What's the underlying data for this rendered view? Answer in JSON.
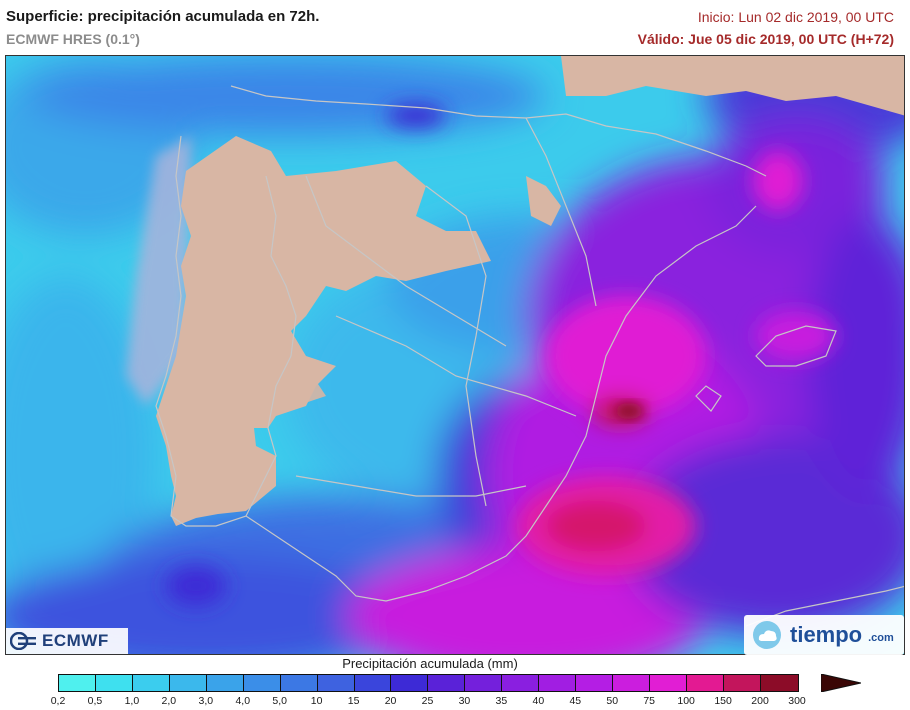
{
  "header": {
    "title": "Superficie: precipitación acumulada en 72h.",
    "model": "ECMWF HRES (0.1°)",
    "init": "Inicio: Lun 02 dic 2019, 00 UTC",
    "valid": "Válido: Jue 05 dic 2019, 00 UTC (H+72)"
  },
  "logos": {
    "ecmwf": "ECMWF",
    "tiempo_main": "tiempo",
    "tiempo_domain": ".com"
  },
  "legend": {
    "title": "Precipitación acumulada (mm)",
    "ticks": [
      "0,2",
      "0,5",
      "1,0",
      "2,0",
      "3,0",
      "4,0",
      "5,0",
      "10",
      "15",
      "20",
      "25",
      "30",
      "35",
      "40",
      "45",
      "50",
      "75",
      "100",
      "150",
      "200",
      "300"
    ],
    "colors": [
      "#4ff0ee",
      "#3ee0ef",
      "#3bcdee",
      "#3bb8ec",
      "#3aa3ea",
      "#3b8ee8",
      "#3c78e4",
      "#3e62e0",
      "#3a45dc",
      "#3d2ad6",
      "#5a22d8",
      "#7420dc",
      "#8a1fe0",
      "#a11ee2",
      "#b41ee4",
      "#cb1ede",
      "#e11ed4",
      "#e31a92",
      "#c3155c",
      "#8c0c28"
    ],
    "arrow_color": "#3a0605"
  },
  "map": {
    "land_color": "#d8b6a4",
    "sea_color": "#a9b3dc",
    "boundary_color": "#c6c6c6"
  }
}
